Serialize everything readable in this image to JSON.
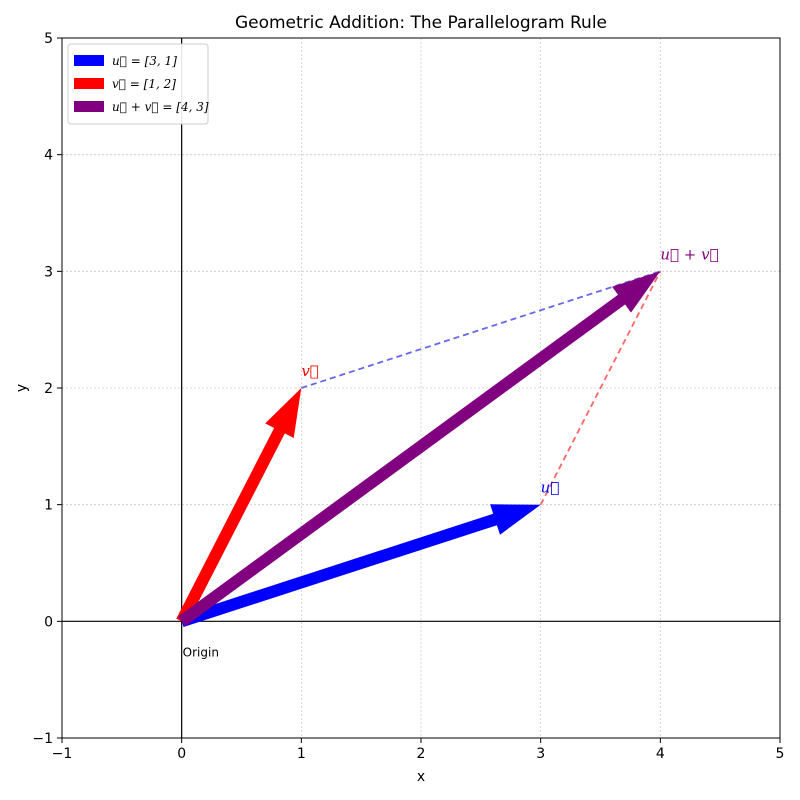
{
  "chart_data": {
    "type": "line",
    "title": "Geometric Addition: The Parallelogram Rule",
    "xlabel": "x",
    "ylabel": "y",
    "xlim": [
      -1,
      5
    ],
    "ylim": [
      -1,
      5
    ],
    "xticks": [
      -1,
      0,
      1,
      2,
      3,
      4,
      5
    ],
    "yticks": [
      -1,
      0,
      1,
      2,
      3,
      4,
      5
    ],
    "xtick_labels": [
      "−1",
      "0",
      "1",
      "2",
      "3",
      "4",
      "5"
    ],
    "ytick_labels": [
      "−1",
      "0",
      "1",
      "2",
      "3",
      "4",
      "5"
    ],
    "grid": true,
    "legend_position": "top-left",
    "vectors": [
      {
        "name": "u⃗ = [3, 1]",
        "tip_label": "u⃗",
        "from": [
          0,
          0
        ],
        "to": [
          3,
          1
        ],
        "color": "#0000ff"
      },
      {
        "name": "v⃗ = [1, 2]",
        "tip_label": "v⃗",
        "from": [
          0,
          0
        ],
        "to": [
          1,
          2
        ],
        "color": "#ff0000"
      },
      {
        "name": "u⃗ + v⃗ = [4, 3]",
        "tip_label": "u⃗ + v⃗",
        "from": [
          0,
          0
        ],
        "to": [
          4,
          3
        ],
        "color": "#800080"
      }
    ],
    "dashed_lines": [
      {
        "from": [
          1,
          2
        ],
        "to": [
          4,
          3
        ],
        "color": "#6666ee"
      },
      {
        "from": [
          3,
          1
        ],
        "to": [
          4,
          3
        ],
        "color": "#ff6666"
      }
    ],
    "annotations": [
      {
        "text": "Origin",
        "x": 0,
        "y": 0
      }
    ]
  }
}
